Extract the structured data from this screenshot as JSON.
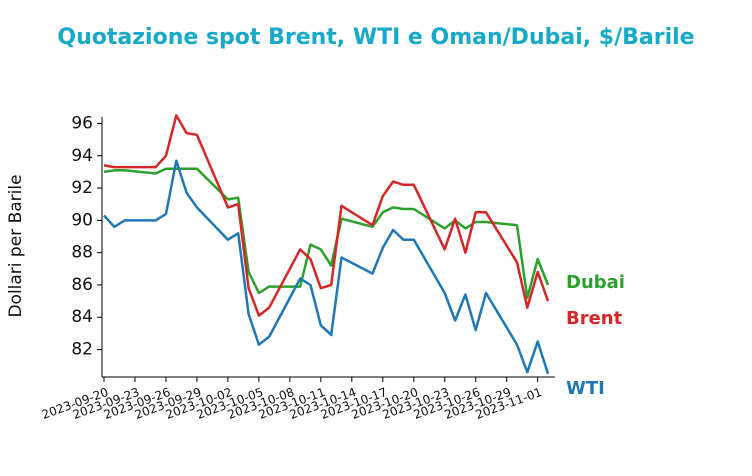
{
  "chart_data": {
    "type": "line",
    "title": "Quotazione spot Brent, WTI e Oman/Dubai, $/Barile",
    "y_label": "Dollari per Barile",
    "x": [
      "2023-09-20",
      "2023-09-21",
      "2023-09-22",
      "2023-09-25",
      "2023-09-26",
      "2023-09-27",
      "2023-09-28",
      "2023-09-29",
      "2023-10-02",
      "2023-10-03",
      "2023-10-04",
      "2023-10-05",
      "2023-10-06",
      "2023-10-09",
      "2023-10-10",
      "2023-10-11",
      "2023-10-12",
      "2023-10-13",
      "2023-10-16",
      "2023-10-17",
      "2023-10-18",
      "2023-10-19",
      "2023-10-20",
      "2023-10-23",
      "2023-10-24",
      "2023-10-25",
      "2023-10-26",
      "2023-10-27",
      "2023-10-30",
      "2023-10-31",
      "2023-11-01",
      "2023-11-02"
    ],
    "series": [
      {
        "name": "Dubai",
        "color": "#2ca02c",
        "values": [
          93.0,
          93.1,
          93.1,
          92.9,
          93.2,
          93.2,
          93.2,
          93.2,
          91.3,
          91.4,
          86.8,
          85.5,
          85.9,
          85.9,
          88.5,
          88.2,
          87.2,
          90.1,
          89.6,
          90.5,
          90.8,
          90.7,
          90.7,
          89.5,
          90.0,
          89.5,
          89.9,
          89.9,
          89.7,
          85.2,
          87.6,
          86.0
        ]
      },
      {
        "name": "Brent",
        "color": "#d62728",
        "values": [
          93.4,
          93.3,
          93.3,
          93.3,
          94.0,
          96.5,
          95.4,
          95.3,
          90.8,
          91.0,
          85.8,
          84.1,
          84.6,
          88.2,
          87.6,
          85.8,
          86.0,
          90.9,
          89.7,
          91.5,
          92.4,
          92.2,
          92.2,
          88.2,
          90.1,
          88.0,
          90.5,
          90.5,
          87.4,
          84.6,
          86.8,
          85.0
        ]
      },
      {
        "name": "WTI",
        "color": "#1f77b4",
        "values": [
          90.3,
          89.6,
          90.0,
          90.0,
          90.4,
          93.7,
          91.7,
          90.8,
          88.8,
          89.2,
          84.2,
          82.3,
          82.8,
          86.4,
          86.0,
          83.5,
          82.9,
          87.7,
          86.7,
          88.3,
          89.4,
          88.8,
          88.8,
          85.5,
          83.8,
          85.4,
          83.2,
          85.5,
          82.3,
          80.6,
          82.5,
          80.5
        ]
      }
    ],
    "xlim": [
      "2023-09-20",
      "2023-11-02"
    ],
    "xticks": [
      "2023-09-20",
      "2023-09-23",
      "2023-09-26",
      "2023-09-29",
      "2023-10-02",
      "2023-10-05",
      "2023-10-08",
      "2023-10-11",
      "2023-10-14",
      "2023-10-17",
      "2023-10-20",
      "2023-10-23",
      "2023-10-26",
      "2023-10-29",
      "2023-11-01"
    ],
    "ylim": [
      80.3,
      96.4
    ],
    "yticks": [
      82,
      84,
      86,
      88,
      90,
      92,
      94,
      96
    ],
    "grid": false
  }
}
